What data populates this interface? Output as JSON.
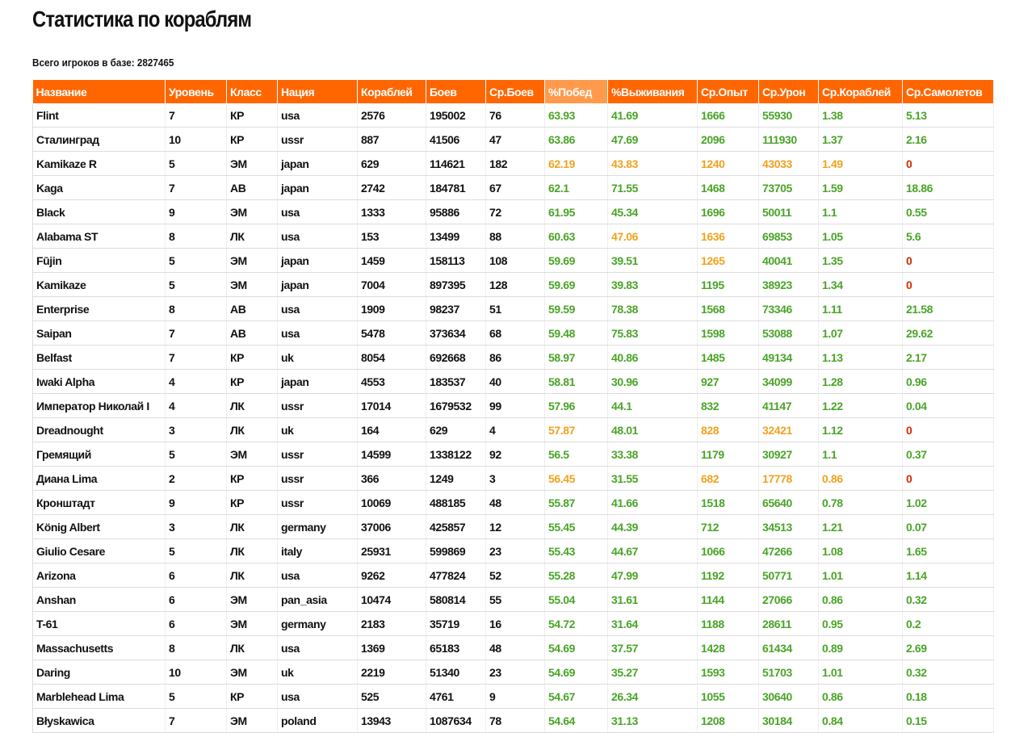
{
  "header": {
    "title": "Статистика по кораблям",
    "subtitle": "Всего игроков в базе: 2827465"
  },
  "table": {
    "columns": [
      "Название",
      "Уровень",
      "Класс",
      "Нация",
      "Кораблей",
      "Боев",
      "Ср.Боев",
      "%Побед",
      "%Выживания",
      "Ср.Опыт",
      "Ср.Урон",
      "Ср.Кораблей",
      "Ср.Самолетов"
    ],
    "sorted_column": 7,
    "palette": {
      "g": "#4aa428",
      "o": "#f0a21e",
      "r": "#d42a00"
    },
    "rows": [
      {
        "cells": [
          "Flint",
          7,
          "КР",
          "usa",
          2576,
          195002,
          76,
          63.93,
          41.69,
          1666,
          55930,
          1.38,
          5.13
        ],
        "colors": [
          "g",
          "g",
          "g",
          "g",
          "g",
          "g"
        ]
      },
      {
        "cells": [
          "Сталинград",
          10,
          "КР",
          "ussr",
          887,
          41506,
          47,
          63.86,
          47.69,
          2096,
          111930,
          1.37,
          2.16
        ],
        "colors": [
          "g",
          "g",
          "g",
          "g",
          "g",
          "g"
        ]
      },
      {
        "cells": [
          "Kamikaze R",
          5,
          "ЭМ",
          "japan",
          629,
          114621,
          182,
          62.19,
          43.83,
          1240,
          43033,
          1.49,
          0
        ],
        "colors": [
          "o",
          "o",
          "o",
          "o",
          "o",
          "r"
        ]
      },
      {
        "cells": [
          "Kaga",
          7,
          "АВ",
          "japan",
          2742,
          184781,
          67,
          62.1,
          71.55,
          1468,
          73705,
          1.59,
          18.86
        ],
        "colors": [
          "g",
          "g",
          "g",
          "g",
          "g",
          "g"
        ]
      },
      {
        "cells": [
          "Black",
          9,
          "ЭМ",
          "usa",
          1333,
          95886,
          72,
          61.95,
          45.34,
          1696,
          50011,
          1.1,
          0.55
        ],
        "colors": [
          "g",
          "g",
          "g",
          "g",
          "g",
          "g"
        ]
      },
      {
        "cells": [
          "Alabama ST",
          8,
          "ЛК",
          "usa",
          153,
          13499,
          88,
          60.63,
          47.06,
          1636,
          69853,
          1.05,
          5.6
        ],
        "colors": [
          "g",
          "o",
          "o",
          "g",
          "g",
          "g"
        ]
      },
      {
        "cells": [
          "Fūjin",
          5,
          "ЭМ",
          "japan",
          1459,
          158113,
          108,
          59.69,
          39.51,
          1265,
          40041,
          1.35,
          0
        ],
        "colors": [
          "g",
          "g",
          "o",
          "g",
          "g",
          "r"
        ]
      },
      {
        "cells": [
          "Kamikaze",
          5,
          "ЭМ",
          "japan",
          7004,
          897395,
          128,
          59.69,
          39.83,
          1195,
          38923,
          1.34,
          0
        ],
        "colors": [
          "g",
          "g",
          "g",
          "g",
          "g",
          "r"
        ]
      },
      {
        "cells": [
          "Enterprise",
          8,
          "АВ",
          "usa",
          1909,
          98237,
          51,
          59.59,
          78.38,
          1568,
          73346,
          1.11,
          21.58
        ],
        "colors": [
          "g",
          "g",
          "g",
          "g",
          "g",
          "g"
        ]
      },
      {
        "cells": [
          "Saipan",
          7,
          "АВ",
          "usa",
          5478,
          373634,
          68,
          59.48,
          75.83,
          1598,
          53088,
          1.07,
          29.62
        ],
        "colors": [
          "g",
          "g",
          "g",
          "g",
          "g",
          "g"
        ]
      },
      {
        "cells": [
          "Belfast",
          7,
          "КР",
          "uk",
          8054,
          692668,
          86,
          58.97,
          40.86,
          1485,
          49134,
          1.13,
          2.17
        ],
        "colors": [
          "g",
          "g",
          "g",
          "g",
          "g",
          "g"
        ]
      },
      {
        "cells": [
          "Iwaki Alpha",
          4,
          "КР",
          "japan",
          4553,
          183537,
          40,
          58.81,
          30.96,
          927,
          34099,
          1.28,
          0.96
        ],
        "colors": [
          "g",
          "g",
          "g",
          "g",
          "g",
          "g"
        ]
      },
      {
        "cells": [
          "Император Николай I",
          4,
          "ЛК",
          "ussr",
          17014,
          1679532,
          99,
          57.96,
          44.1,
          832,
          41147,
          1.22,
          0.04
        ],
        "colors": [
          "g",
          "g",
          "g",
          "g",
          "g",
          "g"
        ]
      },
      {
        "cells": [
          "Dreadnought",
          3,
          "ЛК",
          "uk",
          164,
          629,
          4,
          57.87,
          48.01,
          828,
          32421,
          1.12,
          0
        ],
        "colors": [
          "o",
          "g",
          "o",
          "o",
          "g",
          "r"
        ]
      },
      {
        "cells": [
          "Гремящий",
          5,
          "ЭМ",
          "ussr",
          14599,
          1338122,
          92,
          56.5,
          33.38,
          1179,
          30927,
          1.1,
          0.37
        ],
        "colors": [
          "g",
          "g",
          "g",
          "g",
          "g",
          "g"
        ]
      },
      {
        "cells": [
          "Диана Lima",
          2,
          "КР",
          "ussr",
          366,
          1249,
          3,
          56.45,
          31.55,
          682,
          17778,
          0.86,
          0
        ],
        "colors": [
          "o",
          "g",
          "o",
          "o",
          "o",
          "r"
        ]
      },
      {
        "cells": [
          "Кронштадт",
          9,
          "КР",
          "ussr",
          10069,
          488185,
          48,
          55.87,
          41.66,
          1518,
          65640,
          0.78,
          1.02
        ],
        "colors": [
          "g",
          "g",
          "g",
          "g",
          "g",
          "g"
        ]
      },
      {
        "cells": [
          "König Albert",
          3,
          "ЛК",
          "germany",
          37006,
          425857,
          12,
          55.45,
          44.39,
          712,
          34513,
          1.21,
          0.07
        ],
        "colors": [
          "g",
          "g",
          "g",
          "g",
          "g",
          "g"
        ]
      },
      {
        "cells": [
          "Giulio Cesare",
          5,
          "ЛК",
          "italy",
          25931,
          599869,
          23,
          55.43,
          44.67,
          1066,
          47266,
          1.08,
          1.65
        ],
        "colors": [
          "g",
          "g",
          "g",
          "g",
          "g",
          "g"
        ]
      },
      {
        "cells": [
          "Arizona",
          6,
          "ЛК",
          "usa",
          9262,
          477824,
          52,
          55.28,
          47.99,
          1192,
          50771,
          1.01,
          1.14
        ],
        "colors": [
          "g",
          "g",
          "g",
          "g",
          "g",
          "g"
        ]
      },
      {
        "cells": [
          "Anshan",
          6,
          "ЭМ",
          "pan_asia",
          10474,
          580814,
          55,
          55.04,
          31.61,
          1144,
          27066,
          0.86,
          0.32
        ],
        "colors": [
          "g",
          "g",
          "g",
          "g",
          "g",
          "g"
        ]
      },
      {
        "cells": [
          "T-61",
          6,
          "ЭМ",
          "germany",
          2183,
          35719,
          16,
          54.72,
          31.64,
          1188,
          28611,
          0.95,
          0.2
        ],
        "colors": [
          "g",
          "g",
          "g",
          "g",
          "g",
          "g"
        ]
      },
      {
        "cells": [
          "Massachusetts",
          8,
          "ЛК",
          "usa",
          1369,
          65183,
          48,
          54.69,
          37.57,
          1428,
          61434,
          0.89,
          2.69
        ],
        "colors": [
          "g",
          "g",
          "g",
          "g",
          "g",
          "g"
        ]
      },
      {
        "cells": [
          "Daring",
          10,
          "ЭМ",
          "uk",
          2219,
          51340,
          23,
          54.69,
          35.27,
          1593,
          51703,
          1.01,
          0.32
        ],
        "colors": [
          "g",
          "g",
          "g",
          "g",
          "g",
          "g"
        ]
      },
      {
        "cells": [
          "Marblehead Lima",
          5,
          "КР",
          "usa",
          525,
          4761,
          9,
          54.67,
          26.34,
          1055,
          30640,
          0.86,
          0.18
        ],
        "colors": [
          "g",
          "g",
          "g",
          "g",
          "g",
          "g"
        ]
      },
      {
        "cells": [
          "Błyskawica",
          7,
          "ЭМ",
          "poland",
          13943,
          1087634,
          78,
          54.64,
          31.13,
          1208,
          30184,
          0.84,
          0.15
        ],
        "colors": [
          "g",
          "g",
          "g",
          "g",
          "g",
          "g"
        ]
      }
    ]
  }
}
